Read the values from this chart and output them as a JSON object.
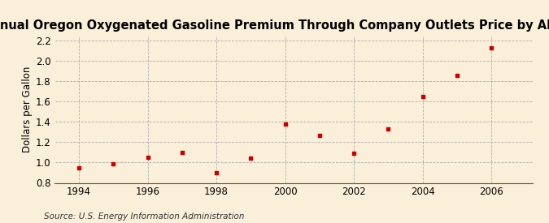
{
  "title": "Annual Oregon Oxygenated Gasoline Premium Through Company Outlets Price by All Sellers",
  "ylabel": "Dollars per Gallon",
  "source": "Source: U.S. Energy Information Administration",
  "background_color": "#faefd8",
  "plot_bg_color": "#faefd8",
  "marker_color": "#cc0000",
  "grid_color": "#b0b0b0",
  "years": [
    1994,
    1995,
    1996,
    1997,
    1998,
    1999,
    2000,
    2001,
    2002,
    2003,
    2004,
    2005,
    2006
  ],
  "values": [
    0.95,
    0.99,
    1.05,
    1.1,
    0.9,
    1.04,
    1.38,
    1.27,
    1.09,
    1.33,
    1.65,
    1.86,
    2.13
  ],
  "xlim": [
    1993.3,
    2007.2
  ],
  "ylim": [
    0.8,
    2.25
  ],
  "yticks": [
    0.8,
    1.0,
    1.2,
    1.4,
    1.6,
    1.8,
    2.0,
    2.2
  ],
  "xticks": [
    1994,
    1996,
    1998,
    2000,
    2002,
    2004,
    2006
  ],
  "title_fontsize": 10.5,
  "label_fontsize": 8.5,
  "tick_fontsize": 8.5,
  "source_fontsize": 7.5
}
